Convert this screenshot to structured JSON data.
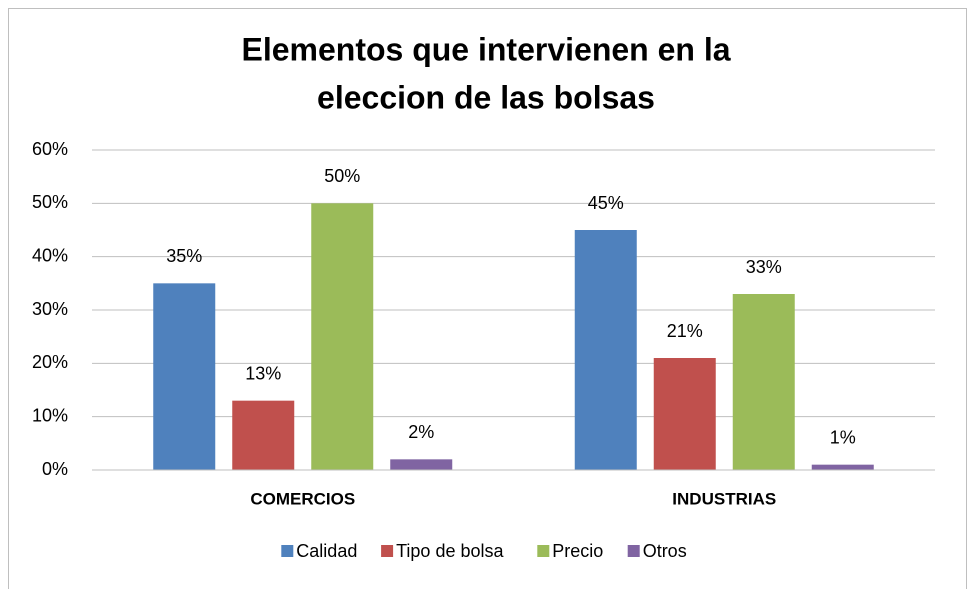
{
  "chart_data": {
    "type": "bar",
    "title": [
      "Elementos que intervienen en la",
      "eleccion de las bolsas"
    ],
    "categories": [
      "COMERCIOS",
      "INDUSTRIAS"
    ],
    "series": [
      {
        "name": "Calidad",
        "color": "#4f81bd",
        "values": [
          35,
          45
        ],
        "value_labels": [
          "35%",
          "45%"
        ]
      },
      {
        "name": "Tipo de bolsa",
        "color": "#c0504d",
        "values": [
          13,
          21
        ],
        "value_labels": [
          "13%",
          "21%"
        ]
      },
      {
        "name": "Precio",
        "color": "#9bbb59",
        "values": [
          50,
          33
        ],
        "value_labels": [
          "50%",
          "33%"
        ]
      },
      {
        "name": "Otros",
        "color": "#8064a2",
        "values": [
          2,
          1
        ],
        "value_labels": [
          "2%",
          "1%"
        ]
      }
    ],
    "ylim": [
      0,
      60
    ],
    "yticks": [
      {
        "value": 0,
        "label": "0%"
      },
      {
        "value": 10,
        "label": "10%"
      },
      {
        "value": 20,
        "label": "20%"
      },
      {
        "value": 30,
        "label": "30%"
      },
      {
        "value": 40,
        "label": "40%"
      },
      {
        "value": 50,
        "label": "50%"
      },
      {
        "value": 60,
        "label": "60%"
      }
    ],
    "grid": true,
    "legend": "bottom"
  }
}
